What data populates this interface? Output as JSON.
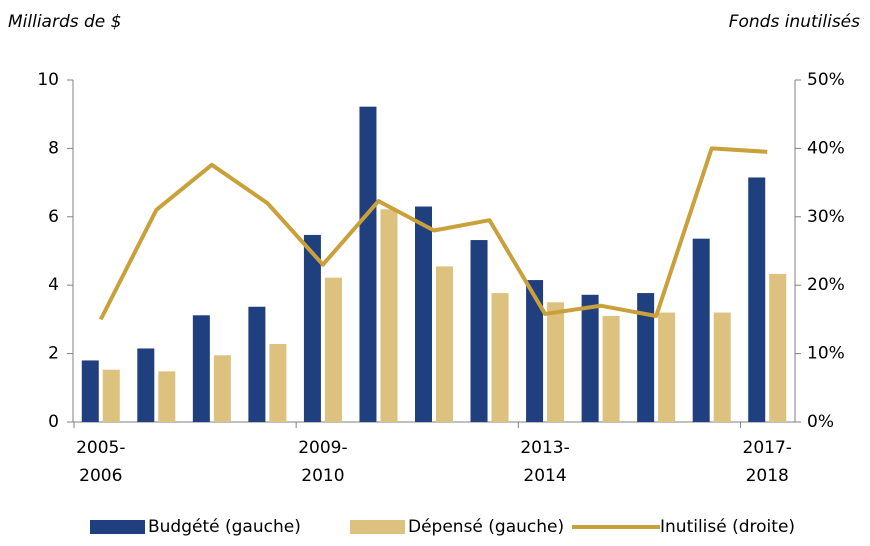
{
  "chart_data": {
    "type": "bar",
    "y_title": "Milliards de $",
    "y2_title": "Fonds inutilisés",
    "categories": [
      "2005-2006",
      null,
      null,
      null,
      "2009-2010",
      null,
      null,
      null,
      "2013-2014",
      null,
      null,
      null,
      "2017-2018"
    ],
    "series": [
      {
        "name": "Budgété (gauche)",
        "type": "bar",
        "color": "#1f3f7f",
        "values": [
          1.8,
          2.15,
          3.12,
          3.37,
          5.47,
          9.22,
          6.3,
          5.32,
          4.15,
          3.72,
          3.77,
          5.36,
          7.15
        ]
      },
      {
        "name": "Dépensé (gauche)",
        "type": "bar",
        "color": "#dcc17f",
        "values": [
          1.53,
          1.48,
          1.95,
          2.28,
          4.22,
          6.22,
          4.55,
          3.77,
          3.5,
          3.1,
          3.2,
          3.2,
          4.33
        ]
      },
      {
        "name": "Inutilisé (droite)",
        "type": "line",
        "axis": "y2",
        "color": "#c9a03a",
        "values": [
          15,
          31,
          37.6,
          32,
          23,
          32.3,
          28,
          29.5,
          15.8,
          17,
          15.5,
          40,
          39.5
        ]
      }
    ],
    "ylim": [
      0,
      10
    ],
    "yticks": [
      0,
      2,
      4,
      6,
      8,
      10
    ],
    "y2lim": [
      0,
      50
    ],
    "y2ticks": [
      {
        "value": 0,
        "label": "0%"
      },
      {
        "value": 10,
        "label": "10%"
      },
      {
        "value": 20,
        "label": "20%"
      },
      {
        "value": 30,
        "label": "30%"
      },
      {
        "value": 40,
        "label": "40%"
      },
      {
        "value": 50,
        "label": "50%"
      }
    ],
    "legend": "bottom"
  }
}
